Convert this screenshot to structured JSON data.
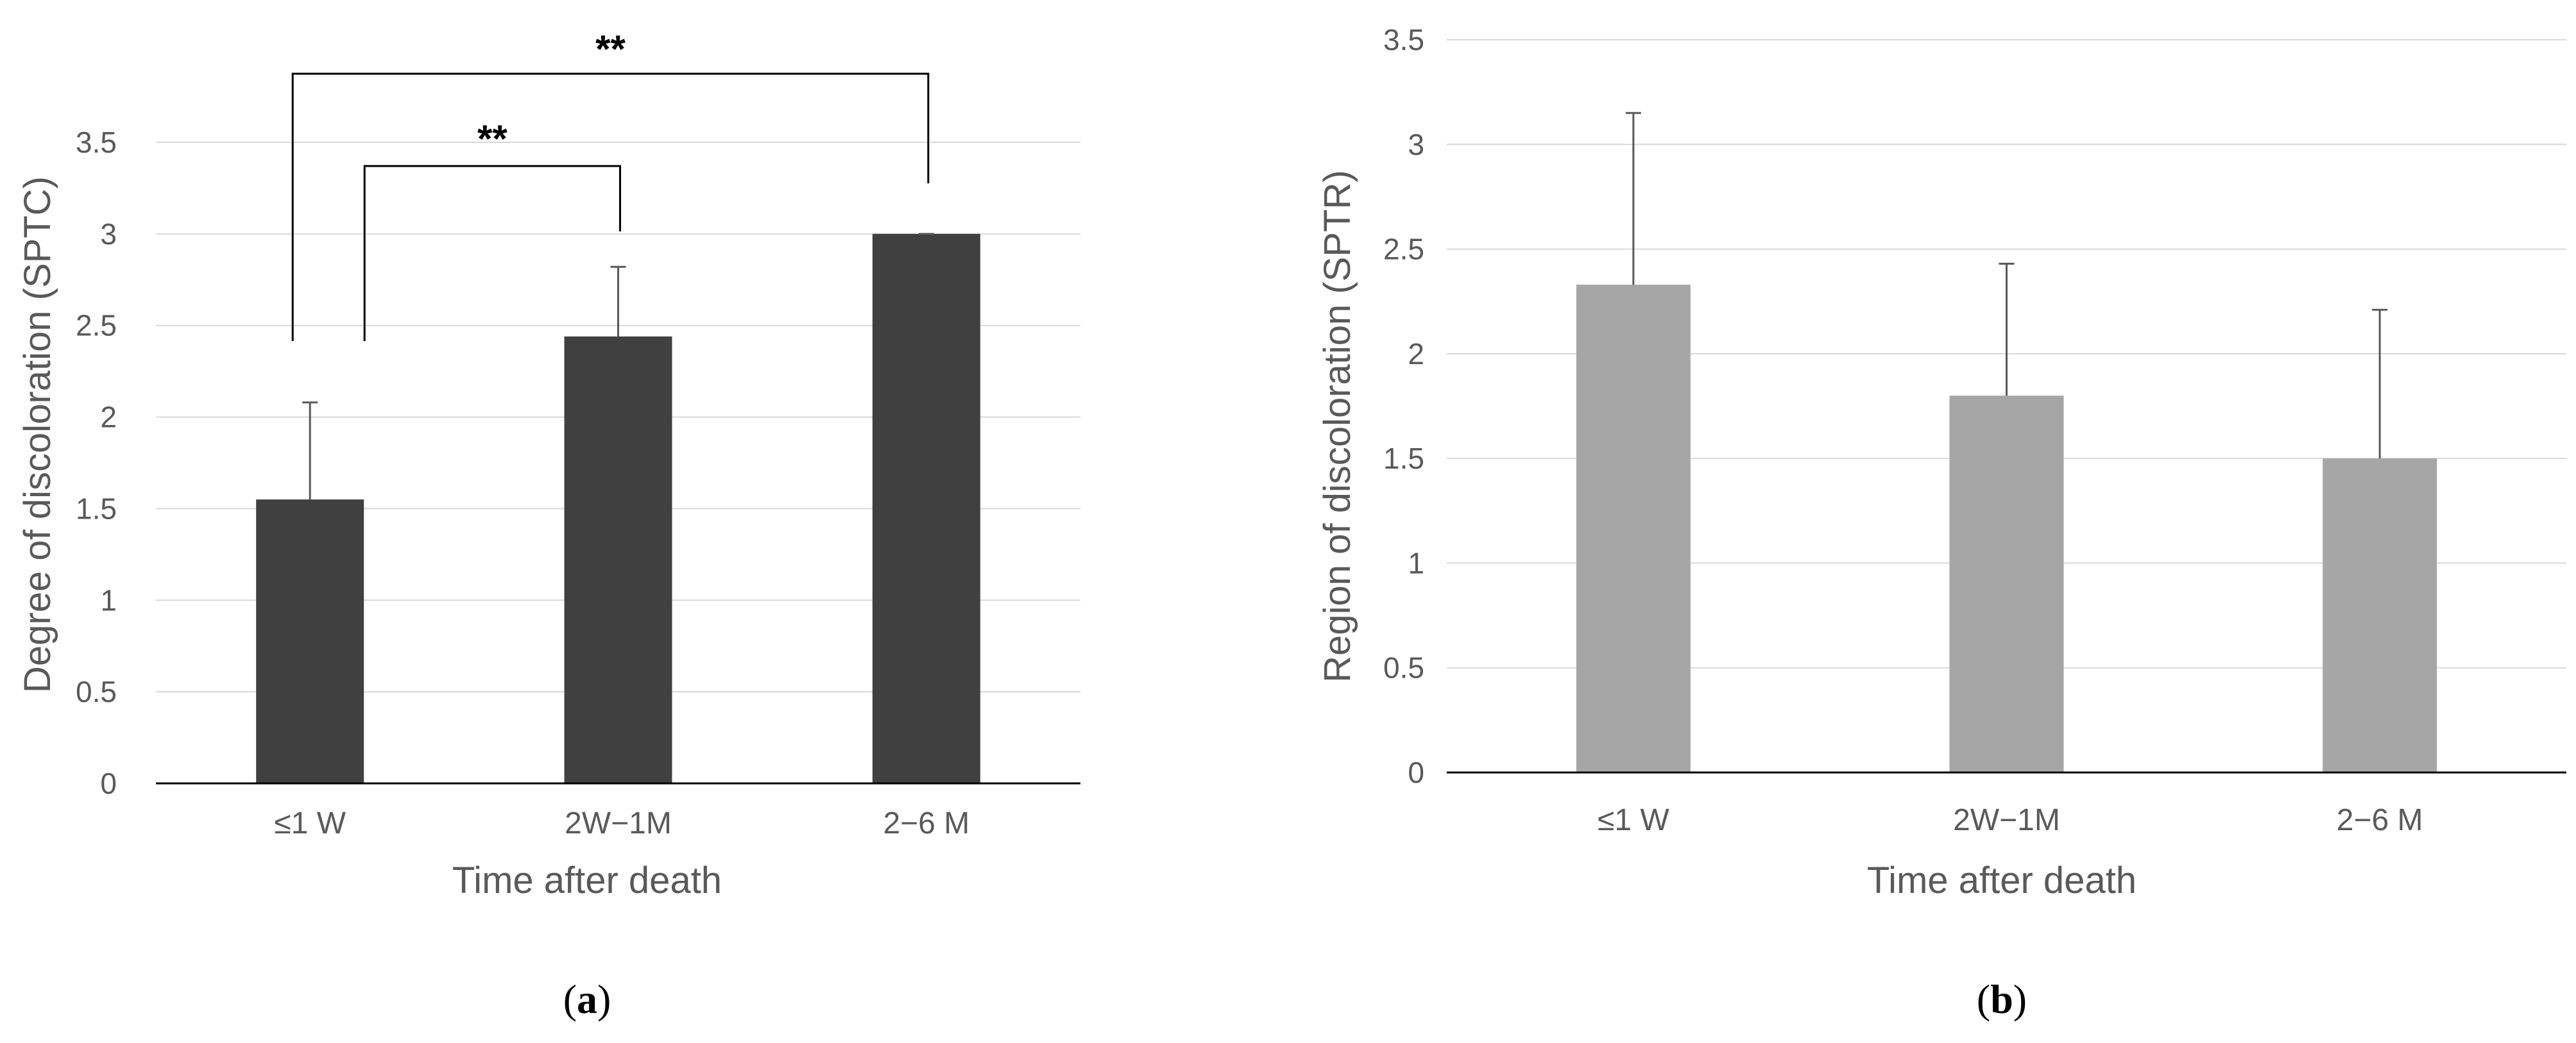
{
  "chart_data": [
    {
      "type": "bar",
      "panel": "(a)",
      "panel_letter": "a",
      "categories": [
        "≤1 W",
        "2W−1M",
        "2−6 M"
      ],
      "values": [
        1.55,
        2.44,
        3.0
      ],
      "errors": [
        0.53,
        0.38,
        0.0
      ],
      "bar_color": "#404040",
      "xlabel": "Time after death",
      "ylabel": "Degree of discoloration (SPTC)",
      "ylim": [
        0,
        3.5
      ],
      "yticks": [
        "0",
        "0.5",
        "1",
        "1.5",
        "2",
        "2.5",
        "3",
        "3.5"
      ],
      "grid": true,
      "significance": [
        {
          "from": 0,
          "to": 2,
          "label": "**"
        },
        {
          "from": 0,
          "to": 1,
          "label": "**"
        }
      ]
    },
    {
      "type": "bar",
      "panel": "(b)",
      "panel_letter": "b",
      "categories": [
        "≤1 W",
        "2W−1M",
        "2−6 M"
      ],
      "values": [
        2.33,
        1.8,
        1.5
      ],
      "errors": [
        0.82,
        0.63,
        0.71
      ],
      "bar_color": "#a6a6a6",
      "xlabel": "Time after death",
      "ylabel": "Region of discoloration (SPTR)",
      "ylim": [
        0,
        3.5
      ],
      "yticks": [
        "0",
        "0.5",
        "1",
        "1.5",
        "2",
        "2.5",
        "3",
        "3.5"
      ],
      "grid": true,
      "significance": []
    }
  ]
}
